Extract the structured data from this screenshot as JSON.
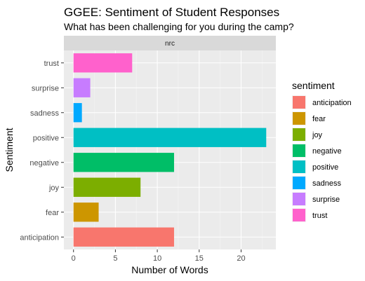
{
  "chart_data": {
    "type": "bar",
    "orientation": "horizontal",
    "title": "GGEE: Sentiment of Student Responses",
    "subtitle": "What has been challenging for you during the camp?",
    "facet_label": "nrc",
    "xlabel": "Number of Words",
    "ylabel": "Sentiment",
    "xlim": [
      -1.15,
      24.15
    ],
    "x_ticks": [
      0,
      5,
      10,
      15,
      20
    ],
    "grid": true,
    "legend_title": "sentiment",
    "legend_position": "right",
    "categories": [
      "anticipation",
      "fear",
      "joy",
      "negative",
      "positive",
      "sadness",
      "surprise",
      "trust"
    ],
    "values": [
      12,
      3,
      8,
      12,
      23,
      1,
      2,
      7
    ],
    "colors": [
      "#F8766D",
      "#CD9600",
      "#7CAE00",
      "#00BE67",
      "#00BFC4",
      "#00A9FF",
      "#C77CFF",
      "#FF61CC"
    ]
  }
}
